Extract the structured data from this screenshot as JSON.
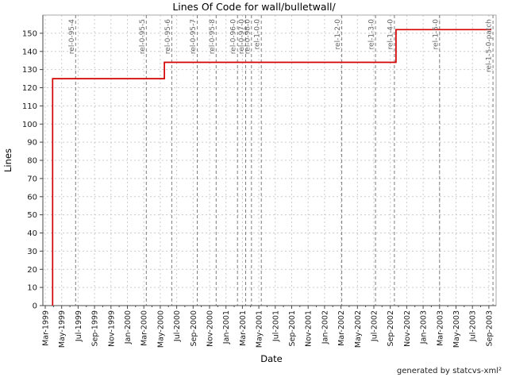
{
  "chart_data": {
    "type": "line",
    "subtype": "step",
    "title": "Lines Of Code for wall/bulletwall/",
    "xlabel": "Date",
    "ylabel": "Lines",
    "footer": "generated by statcvs-xml²",
    "grid": true,
    "legend": "none",
    "x_tick_labels": [
      "Mar-1999",
      "May-1999",
      "Jul-1999",
      "Sep-1999",
      "Nov-1999",
      "Jan-2000",
      "Mar-2000",
      "May-2000",
      "Jul-2000",
      "Sep-2000",
      "Nov-2000",
      "Jan-2001",
      "Mar-2001",
      "May-2001",
      "Jul-2001",
      "Sep-2001",
      "Nov-2001",
      "Jan-2002",
      "Mar-2002",
      "May-2002",
      "Jul-2002",
      "Sep-2002",
      "Nov-2002",
      "Jan-2003",
      "Mar-2003",
      "May-2003",
      "Jul-2003",
      "Sep-2003"
    ],
    "x_tick_interval_months": 2,
    "x_domain_months": [
      -0.29,
      54.88
    ],
    "y_ticks": [
      0,
      10,
      20,
      30,
      40,
      50,
      60,
      70,
      80,
      90,
      100,
      110,
      120,
      130,
      140,
      150
    ],
    "y_domain": [
      0,
      160
    ],
    "series": [
      {
        "name": "lines-of-code",
        "color": "#d40000",
        "step_points": [
          {
            "month": 0.9,
            "date": "Mar-1999",
            "loc": 0
          },
          {
            "month": 0.9,
            "date": "Mar-1999",
            "loc": 125
          },
          {
            "month": 14.5,
            "date": "May-2000",
            "loc": 125
          },
          {
            "month": 14.5,
            "date": "May-2000",
            "loc": 134
          },
          {
            "month": 42.7,
            "date": "Sep-2002",
            "loc": 134
          },
          {
            "month": 42.7,
            "date": "Sep-2002",
            "loc": 152
          },
          {
            "month": 54.3,
            "date": "Sep-2003",
            "loc": 152
          }
        ]
      }
    ],
    "releases": [
      {
        "label": "rel-0-95-4",
        "month": 3.7
      },
      {
        "label": "rel-0-95-5",
        "month": 12.3
      },
      {
        "label": "rel-0-95-6",
        "month": 15.4
      },
      {
        "label": "rel-0-95-7",
        "month": 18.5
      },
      {
        "label": "rel-0-95-8",
        "month": 20.8
      },
      {
        "label": "rel-0-96-0",
        "month": 23.4
      },
      {
        "label": "rel-0-97-0",
        "month": 24.4
      },
      {
        "label": "rel-0-98-0",
        "month": 25.1
      },
      {
        "label": "rel-1-0-0",
        "month": 26.3
      },
      {
        "label": "rel-1-2-0",
        "month": 36.1
      },
      {
        "label": "rel-1-3-0",
        "month": 40.2
      },
      {
        "label": "rel-1-4-0",
        "month": 42.5
      },
      {
        "label": "rel-1-5-0",
        "month": 48.0
      },
      {
        "label": "rel-1-5-0-patch",
        "month": 54.5
      }
    ],
    "colors": {
      "grid": "#cccccc",
      "release_line": "#7d7d7d",
      "release_label": "#666666",
      "frame": "#aaaaaa",
      "axis": "#4a4a4a",
      "text": "#1a1a1a",
      "footer_text": "#222222"
    }
  }
}
